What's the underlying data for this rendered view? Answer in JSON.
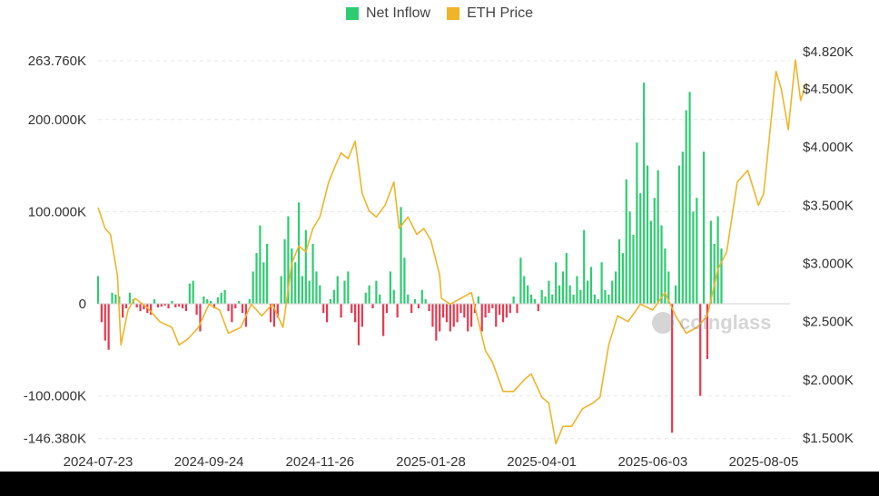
{
  "legend": {
    "inflow_label": "Net Inflow",
    "price_label": "ETH Price"
  },
  "colors": {
    "positive": "#2ecc71",
    "negative": "#e8384f",
    "price": "#f0b429",
    "grid": "#e6e6e6",
    "text": "#333333"
  },
  "watermark": "coinglass",
  "chart_data": {
    "type": "bar+line",
    "xlabels": [
      "2024-07-23",
      "2024-09-24",
      "2024-11-26",
      "2025-01-28",
      "2025-04-01",
      "2025-06-03",
      "2025-08-05"
    ],
    "y_left": {
      "ticks": [
        263760,
        200000,
        100000,
        0,
        -100000,
        -146380
      ],
      "tick_labels": [
        "263.760K",
        "200.000K",
        "100.000K",
        "0",
        "-100.000K",
        "-146.380K"
      ],
      "range": [
        -146380,
        263760
      ]
    },
    "y_right": {
      "ticks": [
        4820,
        4500,
        4000,
        3500,
        3000,
        2500,
        2000,
        1500
      ],
      "tick_labels": [
        "$4.820K",
        "$4.500K",
        "$4.000K",
        "$3.500K",
        "$3.000K",
        "$2.500K",
        "$2.000K",
        "$1.500K"
      ],
      "range": [
        1500,
        4820
      ]
    },
    "grid": true,
    "legend_position": "top-center",
    "series": [
      {
        "name": "Net Inflow",
        "type": "bar",
        "start": "2024-07-23",
        "interval_days": 2,
        "values": [
          30000,
          -20000,
          -40000,
          -50000,
          12000,
          10000,
          8000,
          -15000,
          -5000,
          12000,
          5000,
          -4000,
          -8000,
          -6000,
          -10000,
          -12000,
          5000,
          -4000,
          -3000,
          -2000,
          -5000,
          3000,
          -4000,
          -3000,
          -5000,
          -8000,
          22000,
          25000,
          -12000,
          -30000,
          8000,
          5000,
          3000,
          -5000,
          7000,
          12000,
          15000,
          -8000,
          -20000,
          -5000,
          3000,
          -10000,
          -25000,
          5000,
          35000,
          55000,
          85000,
          45000,
          65000,
          -20000,
          -25000,
          -15000,
          30000,
          70000,
          95000,
          60000,
          45000,
          110000,
          30000,
          80000,
          25000,
          65000,
          35000,
          20000,
          -10000,
          -20000,
          5000,
          15000,
          30000,
          -15000,
          25000,
          35000,
          -10000,
          -20000,
          -45000,
          -25000,
          12000,
          20000,
          -5000,
          25000,
          10000,
          -35000,
          -10000,
          35000,
          15000,
          -15000,
          105000,
          50000,
          10000,
          -10000,
          5000,
          -5000,
          15000,
          5000,
          -8000,
          -25000,
          -40000,
          -30000,
          -15000,
          -20000,
          -30000,
          -25000,
          -20000,
          -10000,
          -15000,
          -30000,
          -25000,
          -10000,
          8000,
          -30000,
          -15000,
          -10000,
          -5000,
          -25000,
          -12000,
          -20000,
          -15000,
          -10000,
          8000,
          -10000,
          50000,
          30000,
          20000,
          10000,
          5000,
          -8000,
          15000,
          8000,
          25000,
          10000,
          45000,
          20000,
          35000,
          55000,
          20000,
          10000,
          30000,
          15000,
          80000,
          25000,
          40000,
          10000,
          5000,
          45000,
          15000,
          10000,
          25000,
          35000,
          70000,
          55000,
          135000,
          100000,
          75000,
          175000,
          120000,
          240000,
          150000,
          90000,
          115000,
          145000,
          85000,
          60000,
          35000,
          -140000,
          20000,
          150000,
          165000,
          210000,
          230000,
          100000,
          115000,
          -100000,
          165000,
          -60000,
          90000,
          65000,
          95000,
          60000
        ]
      },
      {
        "name": "ETH Price",
        "type": "line",
        "points": [
          [
            "2024-07-23",
            3480
          ],
          [
            "2024-07-27",
            3300
          ],
          [
            "2024-07-30",
            3250
          ],
          [
            "2024-08-03",
            2900
          ],
          [
            "2024-08-05",
            2300
          ],
          [
            "2024-08-09",
            2600
          ],
          [
            "2024-08-13",
            2700
          ],
          [
            "2024-08-20",
            2620
          ],
          [
            "2024-08-27",
            2500
          ],
          [
            "2024-09-03",
            2450
          ],
          [
            "2024-09-07",
            2300
          ],
          [
            "2024-09-12",
            2350
          ],
          [
            "2024-09-18",
            2450
          ],
          [
            "2024-09-24",
            2650
          ],
          [
            "2024-09-30",
            2600
          ],
          [
            "2024-10-05",
            2400
          ],
          [
            "2024-10-12",
            2450
          ],
          [
            "2024-10-18",
            2650
          ],
          [
            "2024-10-24",
            2550
          ],
          [
            "2024-10-30",
            2650
          ],
          [
            "2024-11-05",
            2450
          ],
          [
            "2024-11-10",
            3000
          ],
          [
            "2024-11-14",
            3150
          ],
          [
            "2024-11-18",
            3100
          ],
          [
            "2024-11-22",
            3300
          ],
          [
            "2024-11-26",
            3400
          ],
          [
            "2024-12-01",
            3700
          ],
          [
            "2024-12-05",
            3850
          ],
          [
            "2024-12-08",
            3950
          ],
          [
            "2024-12-12",
            3900
          ],
          [
            "2024-12-16",
            4050
          ],
          [
            "2024-12-20",
            3600
          ],
          [
            "2024-12-24",
            3450
          ],
          [
            "2024-12-28",
            3400
          ],
          [
            "2025-01-02",
            3500
          ],
          [
            "2025-01-07",
            3700
          ],
          [
            "2025-01-10",
            3300
          ],
          [
            "2025-01-15",
            3400
          ],
          [
            "2025-01-20",
            3250
          ],
          [
            "2025-01-24",
            3300
          ],
          [
            "2025-01-28",
            3200
          ],
          [
            "2025-02-02",
            2900
          ],
          [
            "2025-02-03",
            2700
          ],
          [
            "2025-02-08",
            2650
          ],
          [
            "2025-02-14",
            2700
          ],
          [
            "2025-02-20",
            2750
          ],
          [
            "2025-02-24",
            2500
          ],
          [
            "2025-02-28",
            2250
          ],
          [
            "2025-03-04",
            2150
          ],
          [
            "2025-03-10",
            1900
          ],
          [
            "2025-03-16",
            1900
          ],
          [
            "2025-03-22",
            2000
          ],
          [
            "2025-03-26",
            2050
          ],
          [
            "2025-04-01",
            1850
          ],
          [
            "2025-04-05",
            1800
          ],
          [
            "2025-04-09",
            1450
          ],
          [
            "2025-04-13",
            1600
          ],
          [
            "2025-04-18",
            1600
          ],
          [
            "2025-04-24",
            1750
          ],
          [
            "2025-04-30",
            1800
          ],
          [
            "2025-05-04",
            1850
          ],
          [
            "2025-05-09",
            2300
          ],
          [
            "2025-05-14",
            2550
          ],
          [
            "2025-05-20",
            2500
          ],
          [
            "2025-05-27",
            2650
          ],
          [
            "2025-06-03",
            2600
          ],
          [
            "2025-06-10",
            2750
          ],
          [
            "2025-06-16",
            2550
          ],
          [
            "2025-06-22",
            2400
          ],
          [
            "2025-06-28",
            2450
          ],
          [
            "2025-07-04",
            2550
          ],
          [
            "2025-07-10",
            2950
          ],
          [
            "2025-07-15",
            3100
          ],
          [
            "2025-07-21",
            3700
          ],
          [
            "2025-07-27",
            3800
          ],
          [
            "2025-08-02",
            3500
          ],
          [
            "2025-08-05",
            3600
          ],
          [
            "2025-08-09",
            4200
          ],
          [
            "2025-08-12",
            4650
          ],
          [
            "2025-08-15",
            4500
          ],
          [
            "2025-08-19",
            4150
          ],
          [
            "2025-08-23",
            4750
          ],
          [
            "2025-08-26",
            4400
          ],
          [
            "2025-08-29",
            4550
          ]
        ]
      }
    ]
  }
}
